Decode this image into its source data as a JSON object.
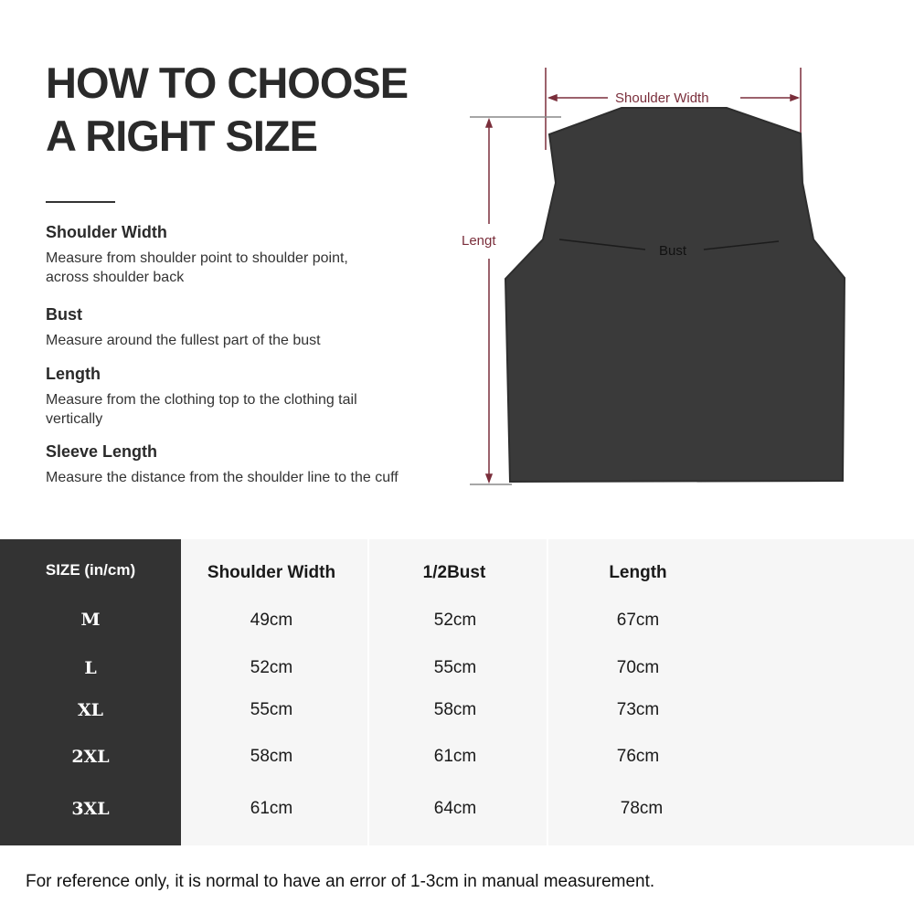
{
  "title": {
    "line1": "HOW TO CHOOSE",
    "line2": "A RIGHT SIZE"
  },
  "guide": [
    {
      "heading": "Shoulder Width",
      "lines": [
        "Measure from shoulder point to shoulder point,",
        "across shoulder back"
      ]
    },
    {
      "heading": "Bust",
      "lines": [
        "Measure around the fullest part of the bust"
      ]
    },
    {
      "heading": "Length",
      "lines": [
        "Measure from the clothing top to the clothing tail",
        "vertically"
      ]
    },
    {
      "heading": "Sleeve Length",
      "lines": [
        "Measure the distance from the shoulder line to the cuff"
      ]
    }
  ],
  "diagram": {
    "shoulder_label": "Shoulder Width",
    "length_label": "Lengt",
    "bust_label": "Bust",
    "garment_color": "#3a3a3a",
    "measure_color": "#7a2e3b"
  },
  "table": {
    "headers": [
      "SIZE  (in/cm)",
      "Shoulder Width",
      "1/2Bust",
      "Length"
    ],
    "rows": [
      {
        "size": "M",
        "shoulder": "49cm",
        "bust": "52cm",
        "length": "67cm"
      },
      {
        "size": "L",
        "shoulder": "52cm",
        "bust": "55cm",
        "length": "70cm"
      },
      {
        "size": "XL",
        "shoulder": "55cm",
        "bust": "58cm",
        "length": "73cm"
      },
      {
        "size": "2XL",
        "shoulder": "58cm",
        "bust": "61cm",
        "length": "76cm"
      },
      {
        "size": "3XL",
        "shoulder": "61cm",
        "bust": "64cm",
        "length": "78cm"
      }
    ]
  },
  "footer": "For reference only, it is normal to have an error of 1-3cm in manual measurement."
}
